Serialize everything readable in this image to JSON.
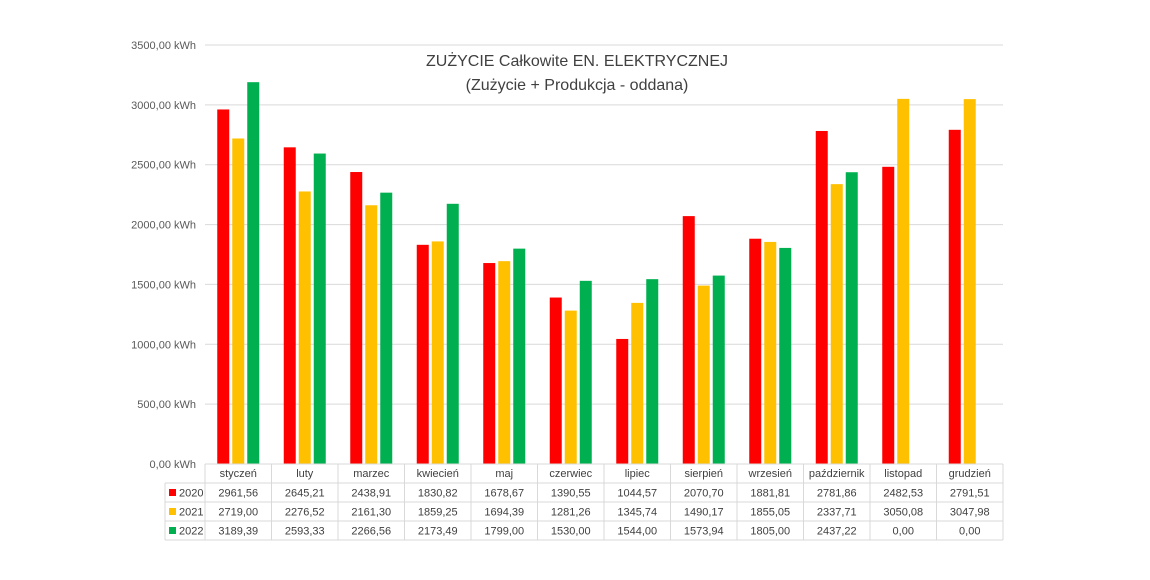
{
  "chart_data": {
    "type": "bar",
    "title": "ZUŻYCIE Całkowite EN. ELEKTRYCZNEJ",
    "subtitle": "(Zużycie + Produkcja - oddana)",
    "categories": [
      "styczeń",
      "luty",
      "marzec",
      "kwiecień",
      "maj",
      "czerwiec",
      "lipiec",
      "sierpień",
      "wrzesień",
      "październik",
      "listopad",
      "grudzień"
    ],
    "series": [
      {
        "name": "2020",
        "color": "#ff0000",
        "values": [
          2961.56,
          2645.21,
          2438.91,
          1830.82,
          1678.67,
          1390.55,
          1044.57,
          2070.7,
          1881.81,
          2781.86,
          2482.53,
          2791.51
        ],
        "labels": [
          "2961,56",
          "2645,21",
          "2438,91",
          "1830,82",
          "1678,67",
          "1390,55",
          "1044,57",
          "2070,70",
          "1881,81",
          "2781,86",
          "2482,53",
          "2791,51"
        ]
      },
      {
        "name": "2021",
        "color": "#ffc000",
        "values": [
          2719.0,
          2276.52,
          2161.3,
          1859.25,
          1694.39,
          1281.26,
          1345.74,
          1490.17,
          1855.05,
          2337.71,
          3050.08,
          3047.98
        ],
        "labels": [
          "2719,00",
          "2276,52",
          "2161,30",
          "1859,25",
          "1694,39",
          "1281,26",
          "1345,74",
          "1490,17",
          "1855,05",
          "2337,71",
          "3050,08",
          "3047,98"
        ]
      },
      {
        "name": "2022",
        "color": "#00b050",
        "values": [
          3189.39,
          2593.33,
          2266.56,
          2173.49,
          1799.0,
          1530.0,
          1544.0,
          1573.94,
          1805.0,
          2437.22,
          0.0,
          0.0
        ],
        "labels": [
          "3189,39",
          "2593,33",
          "2266,56",
          "2173,49",
          "1799,00",
          "1530,00",
          "1544,00",
          "1573,94",
          "1805,00",
          "2437,22",
          "0,00",
          "0,00"
        ]
      }
    ],
    "yticks": [
      0,
      500,
      1000,
      1500,
      2000,
      2500,
      3000,
      3500
    ],
    "ytick_labels": [
      "0,00 kWh",
      "500,00 kWh",
      "1000,00 kWh",
      "1500,00 kWh",
      "2000,00 kWh",
      "2500,00 kWh",
      "3000,00 kWh",
      "3500,00 kWh"
    ],
    "ylim": [
      0,
      3500
    ],
    "grid": true,
    "legend": "data-table"
  }
}
